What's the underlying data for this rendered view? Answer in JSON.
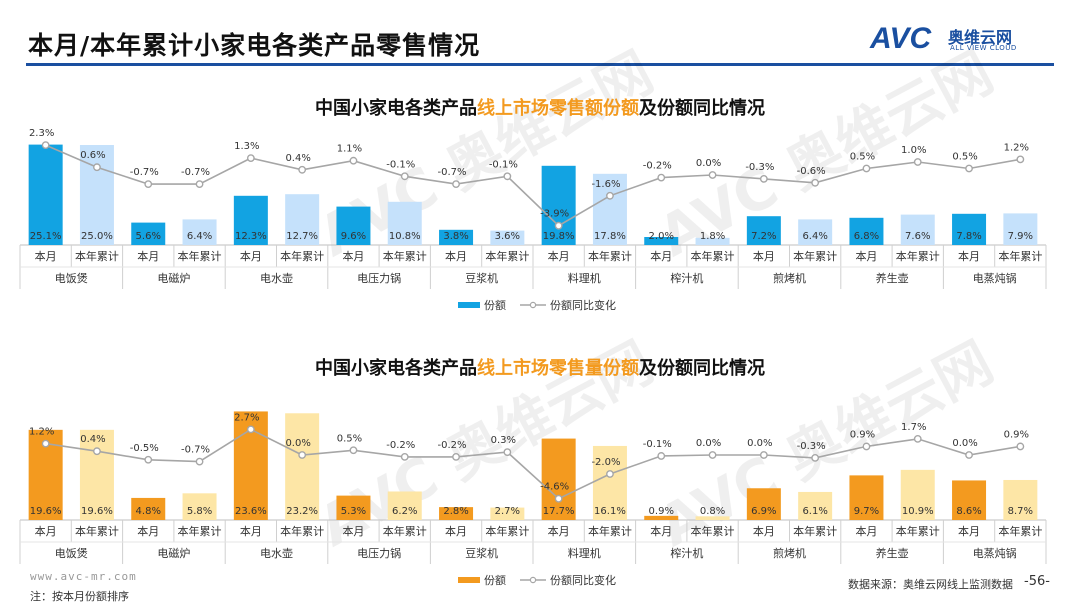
{
  "header": {
    "title": "本月/本年累计小家电各类产品零售情况",
    "logo_text": "AVC",
    "logo_cn": "奥维云网",
    "logo_en": "ALL VIEW CLOUD"
  },
  "colors": {
    "rule": "#1a4fa0",
    "top_month": "#12a3e2",
    "top_ytd": "#c5e1fb",
    "bottom_month": "#f39a1f",
    "bottom_ytd": "#fde6a6",
    "line": "#a6a6a6"
  },
  "chart_data": [
    {
      "type": "bar",
      "title_prefix": "中国小家电各类产品",
      "title_highlight": "线上市场零售额份额",
      "title_suffix": "及份额同比情况",
      "groups": [
        "电饭煲",
        "电磁炉",
        "电水壶",
        "电压力锅",
        "豆浆机",
        "料理机",
        "榨汁机",
        "煎烤机",
        "养生壶",
        "电蒸炖锅"
      ],
      "sub_categories": [
        "本月",
        "本年累计"
      ],
      "series": [
        {
          "name": "份额",
          "type": "bar",
          "values": [
            25.1,
            25.0,
            5.6,
            6.4,
            12.3,
            12.7,
            9.6,
            10.8,
            3.8,
            3.6,
            19.8,
            17.8,
            2.0,
            1.8,
            7.2,
            6.4,
            6.8,
            7.6,
            7.8,
            7.9
          ]
        },
        {
          "name": "份额同比变化",
          "type": "line",
          "values": [
            2.3,
            0.6,
            -0.7,
            -0.7,
            1.3,
            0.4,
            1.1,
            -0.1,
            -0.7,
            -0.1,
            -3.9,
            -1.6,
            -0.2,
            0.0,
            -0.3,
            -0.6,
            0.5,
            1.0,
            0.5,
            1.2
          ]
        }
      ],
      "bar_labels": [
        "25.1%",
        "25.0%",
        "5.6%",
        "6.4%",
        "12.3%",
        "12.7%",
        "9.6%",
        "10.8%",
        "3.8%",
        "3.6%",
        "19.8%",
        "17.8%",
        "2.0%",
        "1.8%",
        "7.2%",
        "6.4%",
        "6.8%",
        "7.6%",
        "7.8%",
        "7.9%"
      ],
      "line_labels": [
        "2.3%",
        "0.6%",
        "-0.7%",
        "-0.7%",
        "1.3%",
        "0.4%",
        "1.1%",
        "-0.1%",
        "-0.7%",
        "-0.1%",
        "-3.9%",
        "-1.6%",
        "-0.2%",
        "0.0%",
        "-0.3%",
        "-0.6%",
        "0.5%",
        "1.0%",
        "0.5%",
        "1.2%"
      ],
      "legend": [
        "份额",
        "份额同比变化"
      ]
    },
    {
      "type": "bar",
      "title_prefix": "中国小家电各类产品",
      "title_highlight": "线上市场零售量份额",
      "title_suffix": "及份额同比情况",
      "groups": [
        "电饭煲",
        "电磁炉",
        "电水壶",
        "电压力锅",
        "豆浆机",
        "料理机",
        "榨汁机",
        "煎烤机",
        "养生壶",
        "电蒸炖锅"
      ],
      "sub_categories": [
        "本月",
        "本年累计"
      ],
      "series": [
        {
          "name": "份额",
          "type": "bar",
          "values": [
            19.6,
            19.6,
            4.8,
            5.8,
            23.6,
            23.2,
            5.3,
            6.2,
            2.8,
            2.7,
            17.7,
            16.1,
            0.9,
            0.8,
            6.9,
            6.1,
            9.7,
            10.9,
            8.6,
            8.7
          ]
        },
        {
          "name": "份额同比变化",
          "type": "line",
          "values": [
            1.2,
            0.4,
            -0.5,
            -0.7,
            2.7,
            0.0,
            0.5,
            -0.2,
            -0.2,
            0.3,
            -4.6,
            -2.0,
            -0.1,
            0.0,
            0.0,
            -0.3,
            0.9,
            1.7,
            0.0,
            0.9
          ]
        }
      ],
      "bar_labels": [
        "19.6%",
        "19.6%",
        "4.8%",
        "5.8%",
        "23.6%",
        "23.2%",
        "5.3%",
        "6.2%",
        "2.8%",
        "2.7%",
        "17.7%",
        "16.1%",
        "0.9%",
        "0.8%",
        "6.9%",
        "6.1%",
        "9.7%",
        "10.9%",
        "8.6%",
        "8.7%"
      ],
      "line_labels": [
        "1.2%",
        "0.4%",
        "-0.5%",
        "-0.7%",
        "2.7%",
        "0.0%",
        "0.5%",
        "-0.2%",
        "-0.2%",
        "0.3%",
        "-4.6%",
        "-2.0%",
        "-0.1%",
        "0.0%",
        "0.0%",
        "-0.3%",
        "0.9%",
        "1.7%",
        "0.0%",
        "0.9%"
      ],
      "legend": [
        "份额",
        "份额同比变化"
      ]
    }
  ],
  "footer": {
    "url": "www.avc-mr.com",
    "note": "注：按本月份额排序",
    "source": "数据来源：奥维云网线上监测数据",
    "page": "-56-"
  }
}
